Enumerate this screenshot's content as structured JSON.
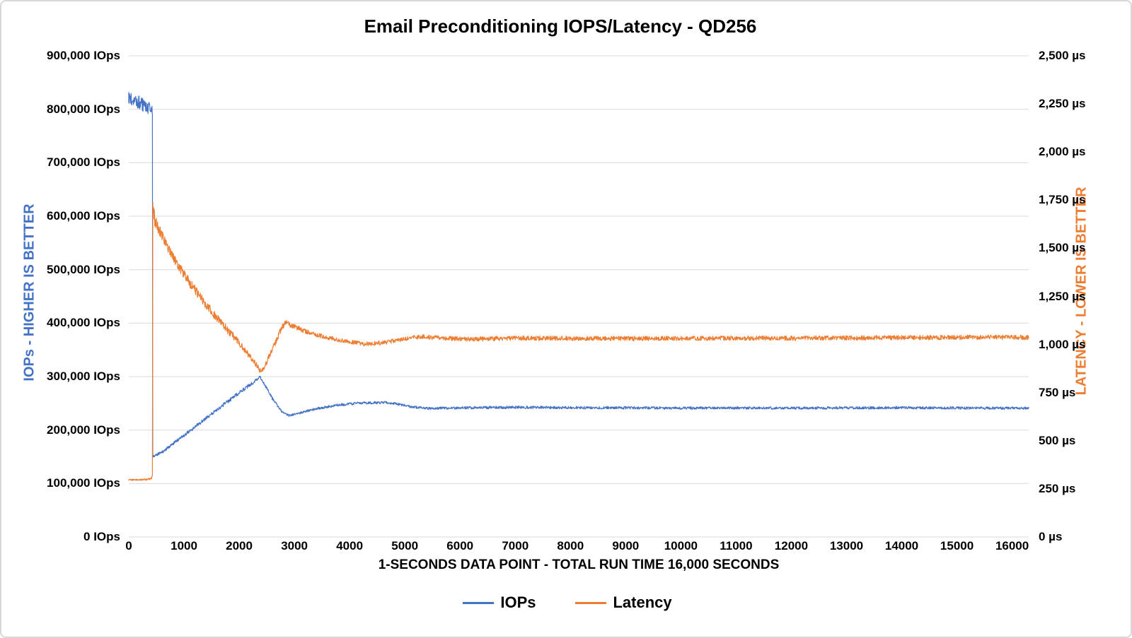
{
  "chart_data": {
    "type": "line",
    "title": "Email Preconditioning IOPS/Latency - QD256",
    "x_axis": {
      "title": "1-SECONDS DATA POINT - TOTAL RUN TIME 16,000 SECONDS",
      "min": 0,
      "max": 16300,
      "tick_values": [
        0,
        1000,
        2000,
        3000,
        4000,
        5000,
        6000,
        7000,
        8000,
        9000,
        10000,
        11000,
        12000,
        13000,
        14000,
        15000,
        16000
      ],
      "tick_labels": [
        "0",
        "1000",
        "2000",
        "3000",
        "4000",
        "5000",
        "6000",
        "7000",
        "8000",
        "9000",
        "10000",
        "11000",
        "12000",
        "13000",
        "14000",
        "15000",
        "16000"
      ]
    },
    "axes": {
      "left": {
        "title": "IOPs - HIGHER IS BETTER",
        "color": "#4472C4",
        "min": 0,
        "max": 900000,
        "tick_values": [
          0,
          100000,
          200000,
          300000,
          400000,
          500000,
          600000,
          700000,
          800000,
          900000
        ],
        "tick_labels": [
          "0 IOps",
          "100,000 IOps",
          "200,000 IOps",
          "300,000 IOps",
          "400,000 IOps",
          "500,000 IOps",
          "600,000 IOps",
          "700,000 IOps",
          "800,000 IOps",
          "900,000 IOps"
        ]
      },
      "right": {
        "title": "LATENCY - LOWER IS BETTER",
        "color": "#ED7D31",
        "min": 0,
        "max": 2500,
        "tick_values": [
          0,
          250,
          500,
          750,
          1000,
          1250,
          1500,
          1750,
          2000,
          2250,
          2500
        ],
        "tick_labels": [
          "0 µs",
          "250 µs",
          "500 µs",
          "750 µs",
          "1,000 µs",
          "1,250 µs",
          "1,500 µs",
          "1,750 µs",
          "2,000 µs",
          "2,250 µs",
          "2,500 µs"
        ]
      }
    },
    "grid": {
      "horizontal": true,
      "vertical": false,
      "color": "#D9D9D9"
    },
    "legend": {
      "position": "bottom",
      "items": [
        {
          "label": "IOPs",
          "color": "#4472C4"
        },
        {
          "label": "Latency",
          "color": "#ED7D31"
        }
      ]
    },
    "series": [
      {
        "name": "IOPs",
        "axis": "left",
        "color": "#4472C4",
        "anchors": [
          [
            0,
            820000,
            13000
          ],
          [
            150,
            814000,
            13000
          ],
          [
            300,
            806000,
            12000
          ],
          [
            420,
            799000,
            11000
          ],
          [
            428,
            790000,
            4000
          ],
          [
            434,
            150000,
            2500
          ],
          [
            620,
            160000,
            2600
          ],
          [
            1000,
            190000,
            2800
          ],
          [
            1400,
            222000,
            3000
          ],
          [
            1800,
            254000,
            3200
          ],
          [
            2150,
            281000,
            3400
          ],
          [
            2380,
            299000,
            2800
          ],
          [
            2430,
            291000,
            2500
          ],
          [
            2600,
            259000,
            2400
          ],
          [
            2780,
            233000,
            2200
          ],
          [
            2900,
            227000,
            2200
          ],
          [
            3100,
            232000,
            2300
          ],
          [
            3400,
            240000,
            2400
          ],
          [
            3800,
            247000,
            2400
          ],
          [
            4200,
            250500,
            2400
          ],
          [
            4650,
            251500,
            2400
          ],
          [
            4900,
            248000,
            2400
          ],
          [
            5150,
            243000,
            2300
          ],
          [
            5450,
            240500,
            2300
          ],
          [
            6000,
            241500,
            2500
          ],
          [
            7000,
            242500,
            2500
          ],
          [
            8000,
            242000,
            2500
          ],
          [
            9000,
            241500,
            2500
          ],
          [
            10000,
            241000,
            2500
          ],
          [
            11000,
            241500,
            2500
          ],
          [
            12000,
            241000,
            2500
          ],
          [
            13000,
            241500,
            2500
          ],
          [
            14000,
            241800,
            2500
          ],
          [
            15000,
            241300,
            2500
          ],
          [
            16000,
            241000,
            2500
          ],
          [
            16300,
            241000,
            2500
          ]
        ]
      },
      {
        "name": "Latency",
        "axis": "right",
        "color": "#ED7D31",
        "anchors": [
          [
            0,
            297,
            4
          ],
          [
            300,
            298,
            4
          ],
          [
            410,
            303,
            5
          ],
          [
            428,
            315,
            8
          ],
          [
            436,
            1720,
            80
          ],
          [
            470,
            1645,
            30
          ],
          [
            600,
            1565,
            26
          ],
          [
            800,
            1455,
            25
          ],
          [
            1000,
            1362,
            24
          ],
          [
            1200,
            1283,
            23
          ],
          [
            1400,
            1208,
            22
          ],
          [
            1600,
            1138,
            21
          ],
          [
            1800,
            1072,
            20
          ],
          [
            2000,
            1008,
            18
          ],
          [
            2200,
            938,
            16
          ],
          [
            2400,
            856,
            12
          ],
          [
            2480,
            898,
            14
          ],
          [
            2620,
            988,
            16
          ],
          [
            2760,
            1080,
            16
          ],
          [
            2840,
            1116,
            14
          ],
          [
            2960,
            1098,
            13
          ],
          [
            3200,
            1068,
            12
          ],
          [
            3500,
            1043,
            12
          ],
          [
            3900,
            1018,
            11
          ],
          [
            4250,
            1003,
            11
          ],
          [
            4600,
            1008,
            11
          ],
          [
            5000,
            1030,
            11
          ],
          [
            5300,
            1041,
            11
          ],
          [
            5700,
            1032,
            12
          ],
          [
            6200,
            1028,
            12
          ],
          [
            7000,
            1033,
            12
          ],
          [
            8000,
            1032,
            12
          ],
          [
            9000,
            1031,
            12
          ],
          [
            10000,
            1032,
            12
          ],
          [
            11000,
            1033,
            12
          ],
          [
            12000,
            1033,
            12
          ],
          [
            13000,
            1034,
            12
          ],
          [
            14000,
            1036,
            12
          ],
          [
            15000,
            1036,
            12
          ],
          [
            16000,
            1038,
            12
          ],
          [
            16300,
            1037,
            12
          ]
        ]
      }
    ]
  },
  "frame": {
    "background": "#FFFFFF",
    "border_color": "#D8D8D8"
  }
}
